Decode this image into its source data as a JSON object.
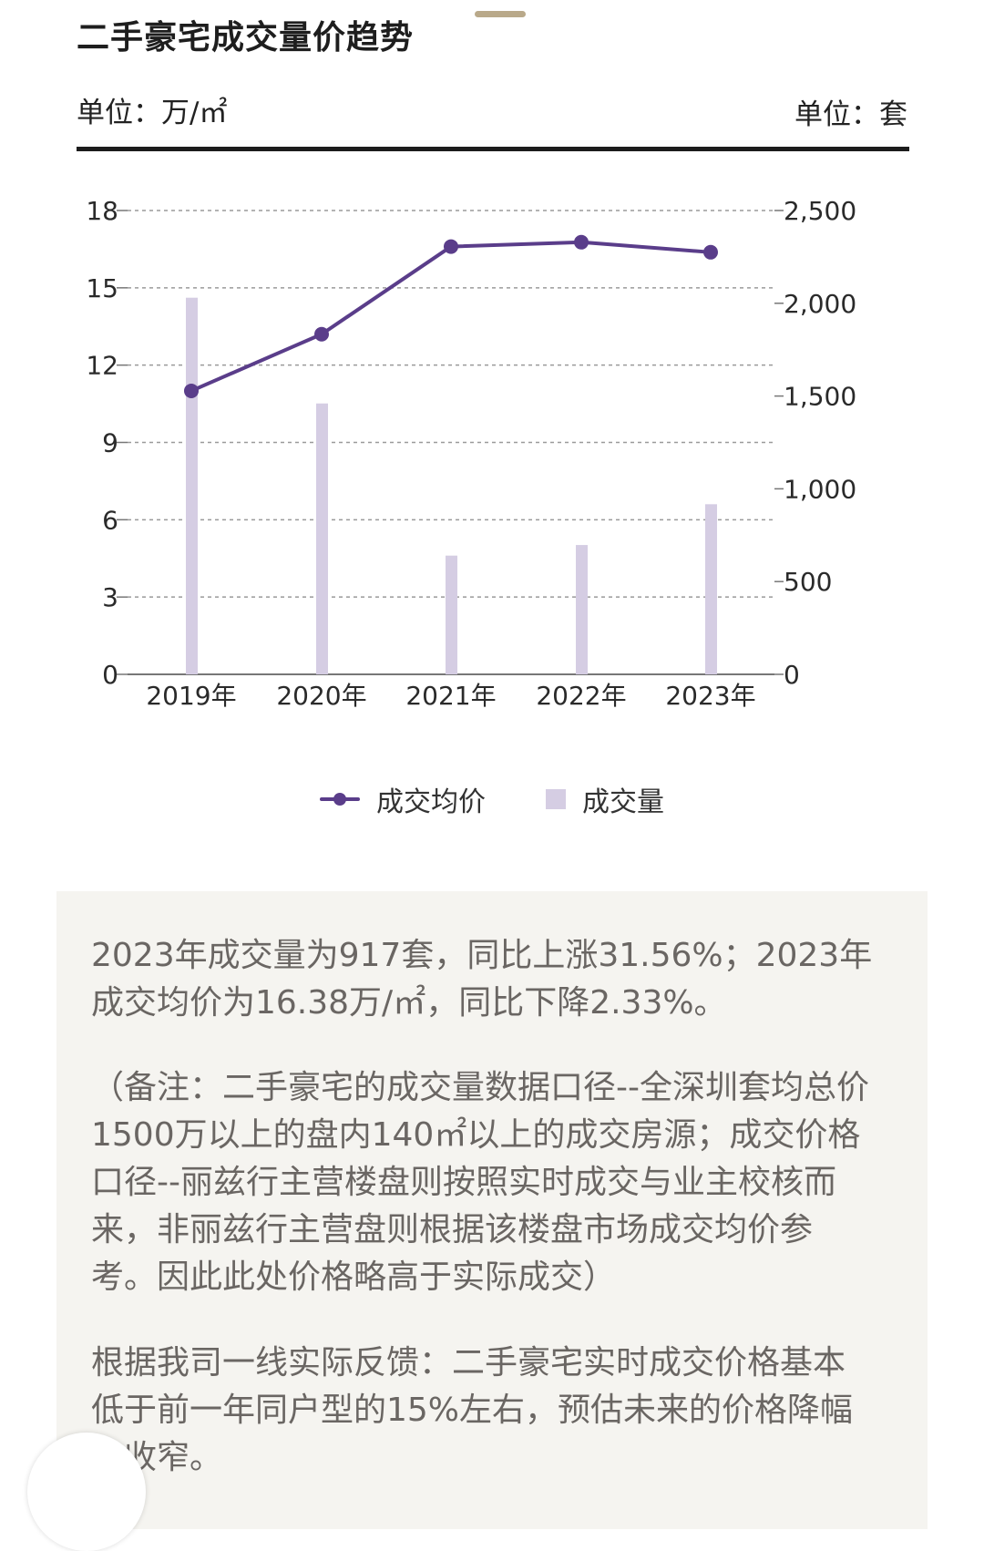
{
  "header": {
    "title": "二手豪宅成交量价趋势",
    "unit_left": "单位：万/㎡",
    "unit_right": "单位：套"
  },
  "chart_data": {
    "type": "bar",
    "categories": [
      "2019年",
      "2020年",
      "2021年",
      "2022年",
      "2023年"
    ],
    "series": [
      {
        "name": "成交均价",
        "type": "line",
        "axis": "left",
        "values": [
          11.0,
          13.2,
          16.6,
          16.77,
          16.38
        ],
        "color": "#5a3d8a"
      },
      {
        "name": "成交量",
        "type": "bar",
        "axis": "right",
        "values": [
          2030,
          1460,
          640,
          697,
          917
        ],
        "color": "#d5cde3"
      }
    ],
    "left_axis": {
      "ticks": [
        "0",
        "3",
        "6",
        "9",
        "12",
        "15",
        "18"
      ],
      "ylim": [
        0,
        18
      ]
    },
    "right_axis": {
      "ticks": [
        "0",
        "500",
        "1,000",
        "1,500",
        "2,000",
        "2,500"
      ],
      "ylim": [
        0,
        2500
      ]
    },
    "grid": true,
    "legend": "bottom-center"
  },
  "legend": {
    "line_label": "成交均价",
    "bar_label": "成交量"
  },
  "notes": {
    "p1": "2023年成交量为917套，同比上涨31.56%；2023年成交均价为16.38万/㎡，同比下降2.33%。",
    "p2": "（备注：二手豪宅的成交量数据口径--全深圳套均总价1500万以上的盘内140㎡以上的成交房源；成交价格口径--丽兹行主营楼盘则按照实时成交与业主校核而来，非丽兹行主营盘则根据该楼盘市场成交均价参考。因此此处价格略高于实际成交）",
    "p3": "根据我司一线实际反馈：二手豪宅实时成交价格基本低于前一年同户型的15%左右，预估未来的价格降幅会收窄。"
  },
  "colors": {
    "line": "#5a3d8a",
    "bar": "#d5cde3",
    "panel": "#f5f4f0"
  }
}
